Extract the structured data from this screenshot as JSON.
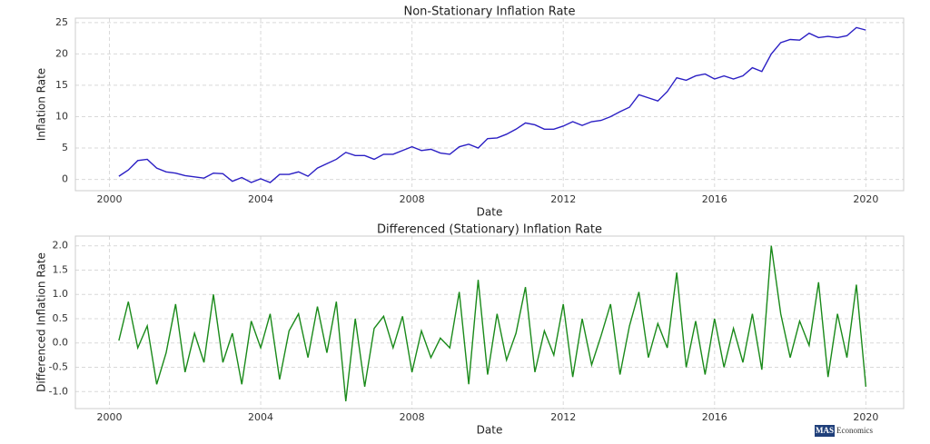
{
  "chart_data": [
    {
      "type": "line",
      "title": "Non-Stationary Inflation Rate",
      "x_label": "Date",
      "y_label": "Inflation Rate",
      "x": [
        2000.25,
        2000.5,
        2000.75,
        2001.0,
        2001.25,
        2001.5,
        2001.75,
        2002.0,
        2002.25,
        2002.5,
        2002.75,
        2003.0,
        2003.25,
        2003.5,
        2003.75,
        2004.0,
        2004.25,
        2004.5,
        2004.75,
        2005.0,
        2005.25,
        2005.5,
        2005.75,
        2006.0,
        2006.25,
        2006.5,
        2006.75,
        2007.0,
        2007.25,
        2007.5,
        2007.75,
        2008.0,
        2008.25,
        2008.5,
        2008.75,
        2009.0,
        2009.25,
        2009.5,
        2009.75,
        2010.0,
        2010.25,
        2010.5,
        2010.75,
        2011.0,
        2011.25,
        2011.5,
        2011.75,
        2012.0,
        2012.25,
        2012.5,
        2012.75,
        2013.0,
        2013.25,
        2013.5,
        2013.75,
        2014.0,
        2014.25,
        2014.5,
        2014.75,
        2015.0,
        2015.25,
        2015.5,
        2015.75,
        2016.0,
        2016.25,
        2016.5,
        2016.75,
        2017.0,
        2017.25,
        2017.5,
        2017.75,
        2018.0,
        2018.25,
        2018.5,
        2018.75,
        2019.0,
        2019.25,
        2019.5,
        2019.75,
        2020.0
      ],
      "series": [
        {
          "name": "Inflation Rate",
          "color": "#2b1fc4",
          "values": [
            0.5,
            1.5,
            3.0,
            3.2,
            1.8,
            1.2,
            1.0,
            0.6,
            0.4,
            0.2,
            1.0,
            0.9,
            -0.3,
            0.3,
            -0.5,
            0.1,
            -0.5,
            0.8,
            0.8,
            1.2,
            0.5,
            1.8,
            2.5,
            3.2,
            4.3,
            3.8,
            3.8,
            3.2,
            4.0,
            4.0,
            4.6,
            5.2,
            4.6,
            4.8,
            4.2,
            4.0,
            5.2,
            5.6,
            5.0,
            6.5,
            6.6,
            7.2,
            8.0,
            9.0,
            8.7,
            8.0,
            8.0,
            8.5,
            9.2,
            8.6,
            9.2,
            9.4,
            10.0,
            10.8,
            11.5,
            13.5,
            13.0,
            12.5,
            14.0,
            16.2,
            15.8,
            16.5,
            16.8,
            16.0,
            16.5,
            16.0,
            16.5,
            17.8,
            17.2,
            20.0,
            21.8,
            22.3,
            22.2,
            23.3,
            22.6,
            22.8,
            22.6,
            22.9,
            24.2,
            23.8
          ]
        }
      ],
      "xlim": [
        1999.1,
        2021.0
      ],
      "xticks": [
        2000,
        2004,
        2008,
        2012,
        2016,
        2020
      ],
      "ylim": [
        -1.8,
        25.7
      ],
      "yticks": [
        0,
        5,
        10,
        15,
        20,
        25
      ],
      "grid": true
    },
    {
      "type": "line",
      "title": "Differenced (Stationary) Inflation Rate",
      "x_label": "Date",
      "y_label": "Differenced Inflation Rate",
      "x": [
        2000.25,
        2000.5,
        2000.75,
        2001.0,
        2001.25,
        2001.5,
        2001.75,
        2002.0,
        2002.25,
        2002.5,
        2002.75,
        2003.0,
        2003.25,
        2003.5,
        2003.75,
        2004.0,
        2004.25,
        2004.5,
        2004.75,
        2005.0,
        2005.25,
        2005.5,
        2005.75,
        2006.0,
        2006.25,
        2006.5,
        2006.75,
        2007.0,
        2007.25,
        2007.5,
        2007.75,
        2008.0,
        2008.25,
        2008.5,
        2008.75,
        2009.0,
        2009.25,
        2009.5,
        2009.75,
        2010.0,
        2010.25,
        2010.5,
        2010.75,
        2011.0,
        2011.25,
        2011.5,
        2011.75,
        2012.0,
        2012.25,
        2012.5,
        2012.75,
        2013.0,
        2013.25,
        2013.5,
        2013.75,
        2014.0,
        2014.25,
        2014.5,
        2014.75,
        2015.0,
        2015.25,
        2015.5,
        2015.75,
        2016.0,
        2016.25,
        2016.5,
        2016.75,
        2017.0,
        2017.25,
        2017.5,
        2017.75,
        2018.0,
        2018.25,
        2018.5,
        2018.75,
        2019.0,
        2019.25,
        2019.5,
        2019.75,
        2020.0
      ],
      "series": [
        {
          "name": "Differenced Inflation Rate",
          "color": "#1a8a1a",
          "values": [
            0.05,
            0.85,
            -0.1,
            0.35,
            -0.85,
            -0.2,
            0.8,
            -0.6,
            0.2,
            -0.4,
            1.0,
            -0.4,
            0.2,
            -0.85,
            0.45,
            -0.1,
            0.6,
            -0.75,
            0.25,
            0.6,
            -0.3,
            0.75,
            -0.2,
            0.85,
            -1.2,
            0.5,
            -0.9,
            0.3,
            0.55,
            -0.1,
            0.55,
            -0.6,
            0.25,
            -0.3,
            0.1,
            -0.1,
            1.05,
            -0.85,
            1.3,
            -0.65,
            0.6,
            -0.35,
            0.2,
            1.15,
            -0.6,
            0.25,
            -0.25,
            0.8,
            -0.7,
            0.5,
            -0.45,
            0.15,
            0.8,
            -0.65,
            0.35,
            1.05,
            -0.3,
            0.4,
            -0.1,
            1.45,
            -0.5,
            0.45,
            -0.65,
            0.5,
            -0.5,
            0.3,
            -0.4,
            0.6,
            -0.55,
            2.0,
            0.6,
            -0.3,
            0.45,
            -0.05,
            1.25,
            -0.7,
            0.6,
            -0.3,
            1.2,
            -0.9
          ]
        }
      ],
      "xlim": [
        1999.1,
        2021.0
      ],
      "xticks": [
        2000,
        2004,
        2008,
        2012,
        2016,
        2020
      ],
      "ylim": [
        -1.35,
        2.2
      ],
      "yticks": [
        {
          "value": -1.0,
          "label": "-1.0"
        },
        -0.5,
        {
          "value": 0,
          "label": "0.0"
        },
        0.5,
        {
          "value": 1.0,
          "label": "1.0"
        },
        1.5,
        {
          "value": 2.0,
          "label": "2.0"
        }
      ],
      "grid": true
    }
  ],
  "watermark": {
    "logo": "MAS",
    "text": "Economics"
  }
}
